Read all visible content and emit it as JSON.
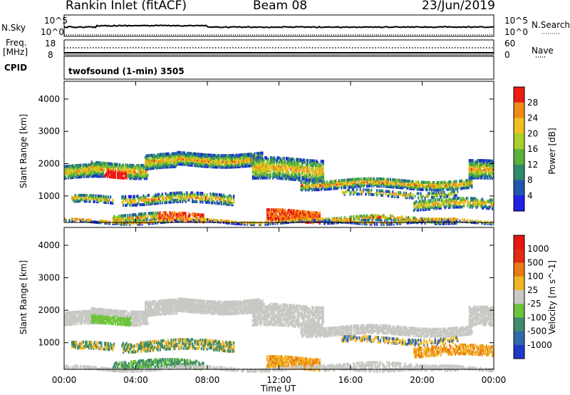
{
  "header": {
    "station": "Rankin Inlet (fitACF)",
    "beam": "Beam 08",
    "date": "23/Jun/2019"
  },
  "top_panels": {
    "nsky_label": "N.Sky",
    "nsearch_label": "N.Search",
    "scale_hi": "10^5",
    "scale_lo": "10^0",
    "freq_label": "Freq.",
    "freq_unit": "[MHz]",
    "freq_ticks": [
      "18",
      "8"
    ],
    "nave_label": "Nave",
    "nave_ticks": [
      "60",
      "0"
    ],
    "cpid_label": "CPID",
    "cpid_text": "twofsound (1-min) 3505"
  },
  "chart_data": [
    {
      "type": "heatmap",
      "name": "power",
      "ylabel": "Slant Range [km]",
      "xlabel": "Time UT",
      "yticks": [
        "1000",
        "2000",
        "3000",
        "4000"
      ],
      "ylim": [
        180,
        4550
      ],
      "xticks": [
        "00:00",
        "04:00",
        "08:00",
        "12:00",
        "16:00",
        "20:00",
        "00:00"
      ],
      "xlim": [
        0,
        24
      ],
      "colorbar_label": "Power [dB]",
      "colorbar_ticks": [
        "4",
        "8",
        "12",
        "16",
        "20",
        "24",
        "28"
      ],
      "colors": [
        "#1f1fe6",
        "#2255b0",
        "#2e8c6a",
        "#58b33a",
        "#aace2a",
        "#f0c020",
        "#f28a14",
        "#ec1c12"
      ]
    },
    {
      "type": "heatmap",
      "name": "velocity",
      "ylabel": "Slant Range [km]",
      "xlabel": "Time UT",
      "yticks": [
        "1000",
        "2000",
        "3000",
        "4000"
      ],
      "ylim": [
        180,
        4550
      ],
      "xticks": [
        "00:00",
        "04:00",
        "08:00",
        "12:00",
        "16:00",
        "20:00",
        "00:00"
      ],
      "xlim": [
        0,
        24
      ],
      "colorbar_label": "Velocity [m s^-1]",
      "colorbar_ticks": [
        "1000",
        "500",
        "100",
        "25",
        "-25",
        "-100",
        "-500",
        "-1000"
      ],
      "colors": [
        "#1e3ac8",
        "#2e6aa8",
        "#3f8c6a",
        "#6ec43c",
        "#c8c8c4",
        "#f0b424",
        "#ec7a14",
        "#e42a12",
        "#e8140e"
      ]
    }
  ]
}
